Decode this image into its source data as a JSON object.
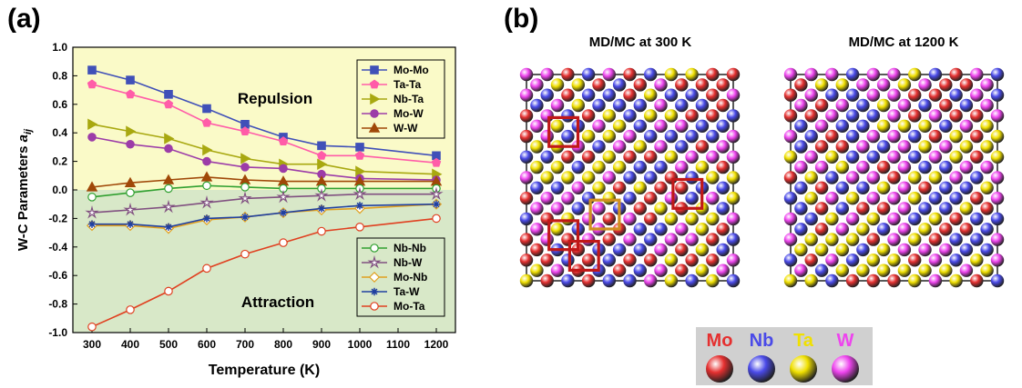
{
  "panel_a": {
    "label": "(a)"
  },
  "panel_b": {
    "label": "(b)",
    "titles": [
      "MD/MC at 300 K",
      "MD/MC at 1200 K"
    ],
    "elements": [
      {
        "symbol": "Mo",
        "color": "#e53030"
      },
      {
        "symbol": "Nb",
        "color": "#4a4ae8"
      },
      {
        "symbol": "Ta",
        "color": "#f0e000"
      },
      {
        "symbol": "W",
        "color": "#ee44ee"
      }
    ]
  },
  "chart_data": {
    "type": "line",
    "title": "",
    "xlabel": "Temperature (K)",
    "ylabel": "W-C Parameters a",
    "ylabel_subscript": "ij",
    "xlim": [
      250,
      1250
    ],
    "ylim": [
      -1.0,
      1.0
    ],
    "x": [
      300,
      400,
      500,
      600,
      700,
      800,
      900,
      1000,
      1200
    ],
    "xticks": [
      "300",
      "400",
      "500",
      "600",
      "700",
      "800",
      "900",
      "1000",
      "1100",
      "1200"
    ],
    "yticks": [
      "1.0",
      "0.8",
      "0.6",
      "0.4",
      "0.2",
      "0.0",
      "-0.2",
      "-0.4",
      "-0.6",
      "-0.8",
      "-1.0"
    ],
    "annotations": [
      "Repulsion",
      "Attraction"
    ],
    "region_colors": {
      "repulsion": "#fafac8",
      "attraction": "#d8e8c8"
    },
    "legend_upper": "top-right",
    "legend_lower": "bottom-right",
    "series": [
      {
        "name": "Mo-Mo",
        "color": "#4050b8",
        "marker": "square",
        "filled": true,
        "legend": "upper",
        "values": [
          0.84,
          0.77,
          0.67,
          0.57,
          0.46,
          0.37,
          0.31,
          0.3,
          0.24
        ]
      },
      {
        "name": "Ta-Ta",
        "color": "#ff5ca8",
        "marker": "pentagon",
        "filled": true,
        "legend": "upper",
        "values": [
          0.74,
          0.67,
          0.6,
          0.47,
          0.41,
          0.34,
          0.24,
          0.24,
          0.19
        ]
      },
      {
        "name": "Nb-Ta",
        "color": "#a8a810",
        "marker": "triangle-right",
        "filled": true,
        "legend": "upper",
        "values": [
          0.46,
          0.41,
          0.36,
          0.28,
          0.22,
          0.18,
          0.18,
          0.13,
          0.11
        ]
      },
      {
        "name": "Mo-W",
        "color": "#9c3ca8",
        "marker": "circle",
        "filled": true,
        "legend": "upper",
        "values": [
          0.37,
          0.32,
          0.29,
          0.2,
          0.16,
          0.15,
          0.11,
          0.08,
          0.07
        ]
      },
      {
        "name": "W-W",
        "color": "#a04808",
        "marker": "triangle-up",
        "filled": true,
        "legend": "upper",
        "values": [
          0.02,
          0.05,
          0.07,
          0.09,
          0.07,
          0.06,
          0.06,
          0.06,
          0.06
        ]
      },
      {
        "name": "Nb-Nb",
        "color": "#30a030",
        "marker": "circle",
        "filled": false,
        "legend": "lower",
        "values": [
          -0.05,
          -0.02,
          0.01,
          0.03,
          0.02,
          0.01,
          0.01,
          0.01,
          0.01
        ]
      },
      {
        "name": "Nb-W",
        "color": "#805080",
        "marker": "star",
        "filled": false,
        "legend": "lower",
        "values": [
          -0.16,
          -0.14,
          -0.12,
          -0.09,
          -0.06,
          -0.05,
          -0.04,
          -0.03,
          -0.03
        ]
      },
      {
        "name": "Mo-Nb",
        "color": "#e0a020",
        "marker": "diamond",
        "filled": false,
        "legend": "lower",
        "values": [
          -0.25,
          -0.25,
          -0.27,
          -0.21,
          -0.19,
          -0.16,
          -0.14,
          -0.13,
          -0.1
        ]
      },
      {
        "name": "Ta-W",
        "color": "#2040a0",
        "marker": "asterisk",
        "filled": false,
        "legend": "lower",
        "values": [
          -0.24,
          -0.24,
          -0.26,
          -0.2,
          -0.19,
          -0.16,
          -0.13,
          -0.11,
          -0.1
        ]
      },
      {
        "name": "Mo-Ta",
        "color": "#e04020",
        "marker": "circle",
        "filled": false,
        "legend": "lower",
        "values": [
          -0.96,
          -0.84,
          -0.71,
          -0.55,
          -0.45,
          -0.37,
          -0.29,
          -0.26,
          -0.2
        ]
      }
    ]
  }
}
